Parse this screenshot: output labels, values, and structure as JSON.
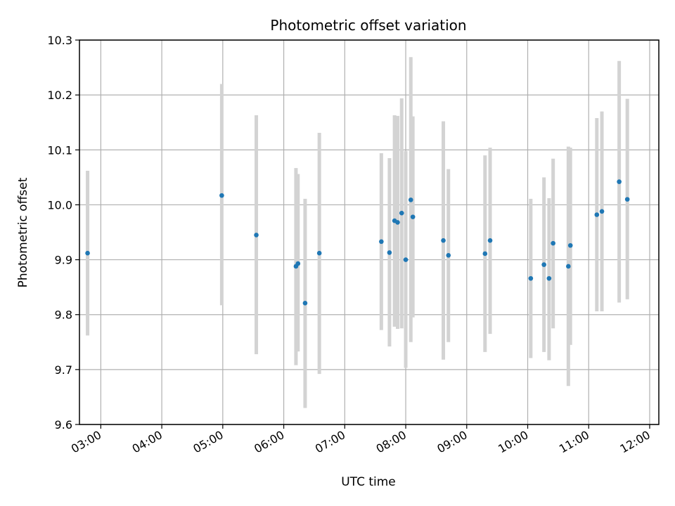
{
  "chart_data": {
    "type": "scatter",
    "title": "Photometric offset variation",
    "xlabel": "UTC time",
    "ylabel": "Photometric offset",
    "grid": true,
    "ylim": [
      9.6,
      10.3
    ],
    "xlim": [
      "02:39",
      "12:09"
    ],
    "yticks": [
      "9.6",
      "9.7",
      "9.8",
      "9.9",
      "10.0",
      "10.1",
      "10.2",
      "10.3"
    ],
    "xticks": [
      "03:00",
      "04:00",
      "05:00",
      "06:00",
      "07:00",
      "08:00",
      "09:00",
      "10:00",
      "11:00",
      "12:00"
    ],
    "colors": {
      "point": "#1f77b4",
      "errorbar": "#d3d3d3",
      "grid": "#b0b0b0"
    },
    "points": [
      {
        "x": "02:47",
        "y": 9.912,
        "ylow": 9.762,
        "yhigh": 10.062
      },
      {
        "x": "04:59",
        "y": 10.017,
        "ylow": 9.817,
        "yhigh": 10.22
      },
      {
        "x": "05:33",
        "y": 9.945,
        "ylow": 9.728,
        "yhigh": 10.163
      },
      {
        "x": "06:12",
        "y": 9.888,
        "ylow": 9.708,
        "yhigh": 10.067
      },
      {
        "x": "06:14",
        "y": 9.893,
        "ylow": 9.733,
        "yhigh": 10.056
      },
      {
        "x": "06:21",
        "y": 9.821,
        "ylow": 9.63,
        "yhigh": 10.011
      },
      {
        "x": "06:35",
        "y": 9.912,
        "ylow": 9.692,
        "yhigh": 10.131
      },
      {
        "x": "07:36",
        "y": 9.933,
        "ylow": 9.772,
        "yhigh": 10.094
      },
      {
        "x": "07:44",
        "y": 9.913,
        "ylow": 9.742,
        "yhigh": 10.085
      },
      {
        "x": "07:49",
        "y": 9.971,
        "ylow": 9.778,
        "yhigh": 10.163
      },
      {
        "x": "07:52",
        "y": 9.968,
        "ylow": 9.774,
        "yhigh": 10.162
      },
      {
        "x": "07:56",
        "y": 9.985,
        "ylow": 9.775,
        "yhigh": 10.194
      },
      {
        "x": "08:00",
        "y": 9.9,
        "ylow": 9.703,
        "yhigh": 10.098
      },
      {
        "x": "08:05",
        "y": 10.009,
        "ylow": 9.75,
        "yhigh": 10.269
      },
      {
        "x": "08:07",
        "y": 9.978,
        "ylow": 9.795,
        "yhigh": 10.161
      },
      {
        "x": "08:37",
        "y": 9.935,
        "ylow": 9.718,
        "yhigh": 10.152
      },
      {
        "x": "08:42",
        "y": 9.908,
        "ylow": 9.75,
        "yhigh": 10.065
      },
      {
        "x": "09:18",
        "y": 9.911,
        "ylow": 9.732,
        "yhigh": 10.09
      },
      {
        "x": "09:23",
        "y": 9.935,
        "ylow": 9.765,
        "yhigh": 10.104
      },
      {
        "x": "10:03",
        "y": 9.866,
        "ylow": 9.721,
        "yhigh": 10.011
      },
      {
        "x": "10:16",
        "y": 9.891,
        "ylow": 9.732,
        "yhigh": 10.05
      },
      {
        "x": "10:21",
        "y": 9.866,
        "ylow": 9.717,
        "yhigh": 10.012
      },
      {
        "x": "10:25",
        "y": 9.93,
        "ylow": 9.775,
        "yhigh": 10.084
      },
      {
        "x": "10:40",
        "y": 9.888,
        "ylow": 9.67,
        "yhigh": 10.106
      },
      {
        "x": "10:42",
        "y": 9.926,
        "ylow": 9.745,
        "yhigh": 10.104
      },
      {
        "x": "11:08",
        "y": 9.982,
        "ylow": 9.806,
        "yhigh": 10.158
      },
      {
        "x": "11:13",
        "y": 9.988,
        "ylow": 9.806,
        "yhigh": 10.17
      },
      {
        "x": "11:30",
        "y": 10.042,
        "ylow": 9.822,
        "yhigh": 10.262
      },
      {
        "x": "11:38",
        "y": 10.01,
        "ylow": 9.828,
        "yhigh": 10.193
      }
    ]
  }
}
